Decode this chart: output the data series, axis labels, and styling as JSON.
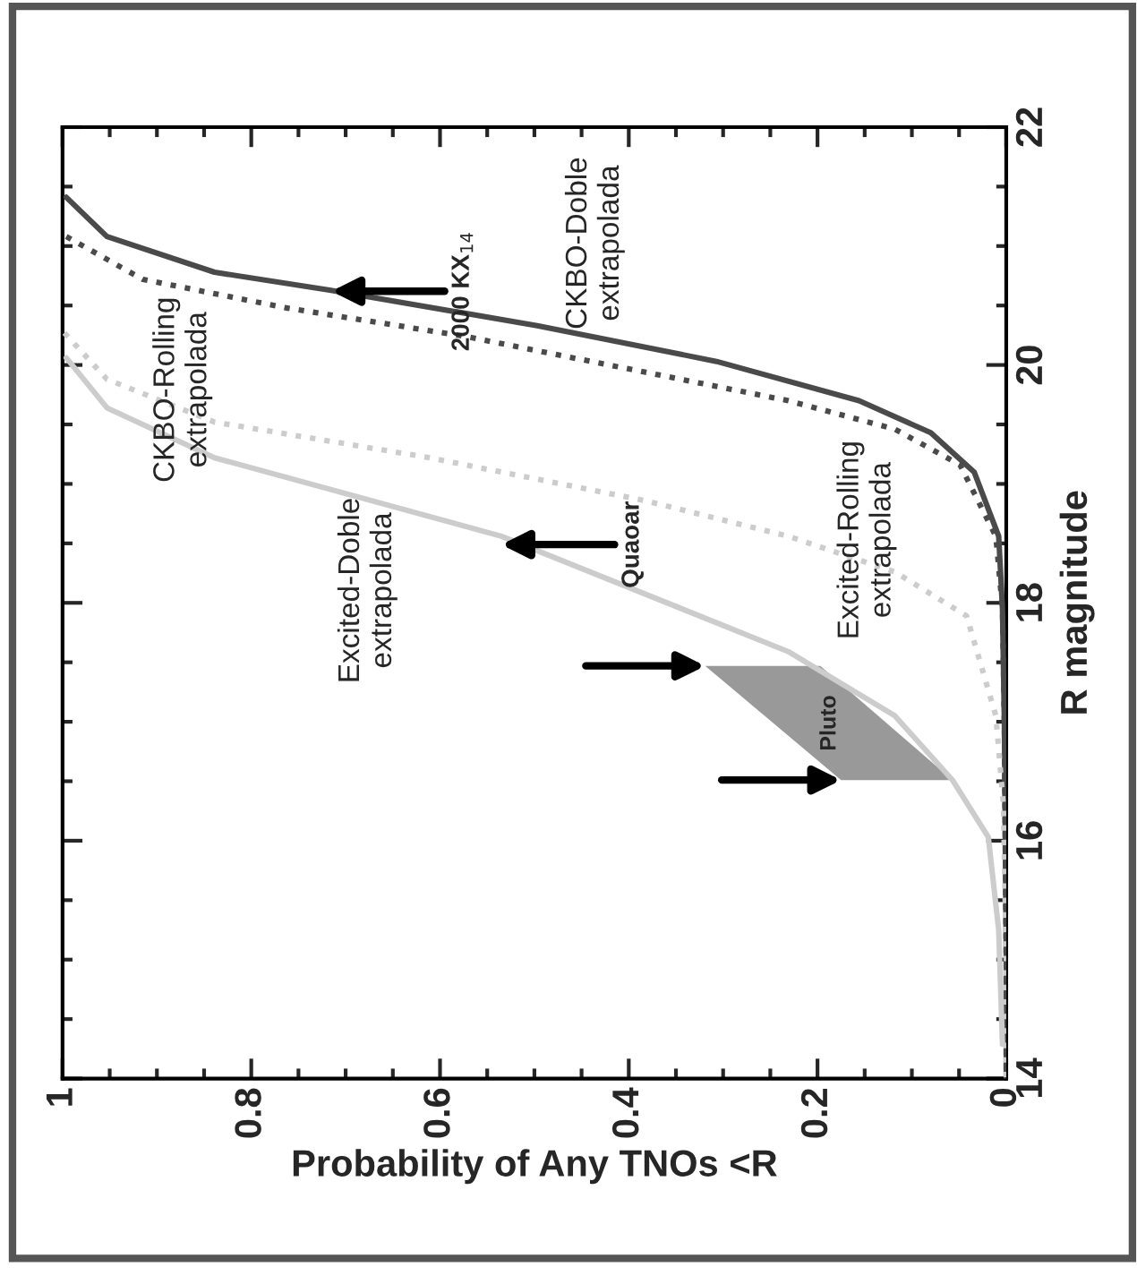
{
  "chart_data": {
    "type": "line",
    "xlabel": "Probability of Any TNOs <R",
    "ylabel": "R magnitude",
    "xlim": [
      1,
      0
    ],
    "xticks": [
      1,
      0.8,
      0.6,
      0.4,
      0.2,
      0
    ],
    "ylim": [
      14,
      22
    ],
    "yticks": [
      14,
      16,
      18,
      20,
      22
    ],
    "grid": false,
    "series": [
      {
        "color": "#4a4a4a",
        "line_style": "solid",
        "x": [
          0.996,
          0.953,
          0.839,
          0.717,
          0.497,
          0.307,
          0.156,
          0.08,
          0.034,
          0.008,
          0.004,
          0.002,
          0,
          0
        ],
        "values": [
          21.41,
          21.08,
          20.78,
          20.63,
          20.33,
          20.03,
          19.7,
          19.43,
          19.1,
          18.56,
          17.95,
          17.0,
          15.0,
          14
        ]
      },
      {
        "color": "#4a4a4a",
        "line_style": "dotted",
        "x": [
          0.996,
          0.915,
          0.763,
          0.573,
          0.383,
          0.231,
          0.118,
          0.049,
          0.011,
          0.004,
          0.002,
          0,
          0
        ],
        "values": [
          21.08,
          20.72,
          20.48,
          20.24,
          19.94,
          19.7,
          19.46,
          19.16,
          18.56,
          17.95,
          17.0,
          15.0,
          14
        ]
      },
      {
        "color": "#cccccc",
        "line_style": "dotted",
        "x": [
          0.998,
          0.953,
          0.839,
          0.611,
          0.383,
          0.231,
          0.118,
          0.042,
          0.011,
          0.003,
          0,
          0
        ],
        "values": [
          20.27,
          19.88,
          19.52,
          19.22,
          18.86,
          18.56,
          18.26,
          17.89,
          17.05,
          16.3,
          15.0,
          14
        ]
      },
      {
        "color": "#cccccc",
        "line_style": "solid",
        "x": [
          0.996,
          0.953,
          0.839,
          0.535,
          0.231,
          0.118,
          0.057,
          0.019,
          0.008,
          0.004
        ],
        "values": [
          20.06,
          19.64,
          19.22,
          18.56,
          17.59,
          17.05,
          16.51,
          16.03,
          15.25,
          14.29
        ]
      },
      {
        "type": "area",
        "color": "#999999",
        "x": [
          0.319,
          0.197,
          0.057,
          0.175
        ],
        "values": [
          17.47,
          17.47,
          16.51,
          16.51
        ]
      }
    ],
    "annotations": [
      "CKBO-Doble\nextrapolada",
      "CKBO-Rolling\nextrapolada",
      "Excited-Doble\nextrapolada",
      "Excited-Rolling\nextrapolada",
      {
        "text": "Quaoar",
        "x": 0.535,
        "y": 18.49
      },
      {
        "text": "2000 KX$_{14}$",
        "x": 0.715,
        "y": 20.62
      },
      "Pluto"
    ]
  }
}
